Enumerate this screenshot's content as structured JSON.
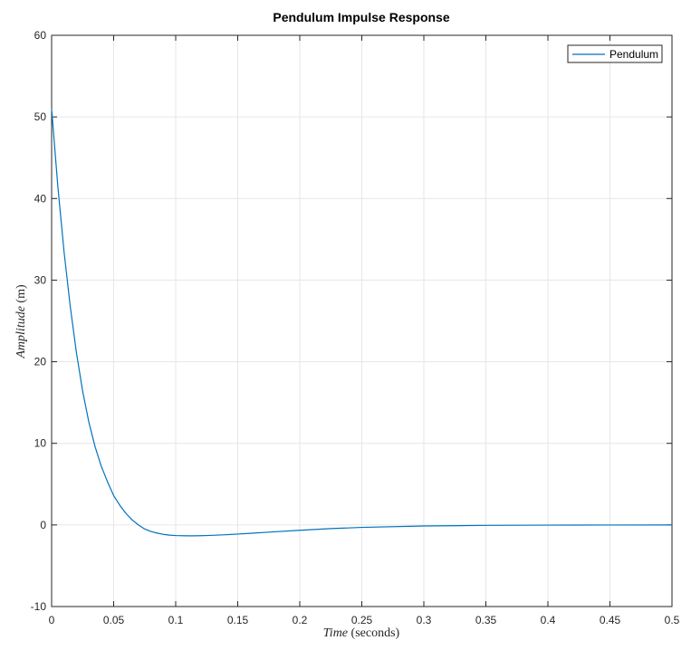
{
  "chart_data": {
    "type": "line",
    "title": "Pendulum Impulse Response",
    "xlabel": {
      "italic": "Time",
      "plain": " (seconds)"
    },
    "ylabel": {
      "italic": "Amplitude",
      "plain": " (m)"
    },
    "xlim": [
      0,
      0.5
    ],
    "ylim": [
      -10,
      60
    ],
    "xticks": [
      0,
      0.05,
      0.1,
      0.15,
      0.2,
      0.25,
      0.3,
      0.35,
      0.4,
      0.45,
      0.5
    ],
    "xtick_labels": [
      "0",
      "0.05",
      "0.1",
      "0.15",
      "0.2",
      "0.25",
      "0.3",
      "0.35",
      "0.4",
      "0.45",
      "0.5"
    ],
    "yticks": [
      -10,
      0,
      10,
      20,
      30,
      40,
      50,
      60
    ],
    "ytick_labels": [
      "-10",
      "0",
      "10",
      "20",
      "30",
      "40",
      "50",
      "60"
    ],
    "grid": true,
    "legend": {
      "placement": "top-right",
      "entries": [
        "Pendulum"
      ]
    },
    "series": [
      {
        "name": "Pendulum",
        "color": "#0072BD",
        "x": [
          0,
          0.005,
          0.01,
          0.015,
          0.02,
          0.025,
          0.03,
          0.035,
          0.04,
          0.045,
          0.05,
          0.055,
          0.06,
          0.065,
          0.07,
          0.075,
          0.08,
          0.085,
          0.09,
          0.095,
          0.1,
          0.105,
          0.11,
          0.115,
          0.12,
          0.125,
          0.13,
          0.14,
          0.15,
          0.16,
          0.175,
          0.2,
          0.225,
          0.25,
          0.3,
          0.35,
          0.4,
          0.45,
          0.5
        ],
        "y": [
          51,
          41.5,
          33.5,
          26.8,
          21.1,
          16.4,
          12.6,
          9.6,
          7.2,
          5.3,
          3.6,
          2.4,
          1.4,
          0.6,
          0.0,
          -0.5,
          -0.8,
          -1.0,
          -1.15,
          -1.25,
          -1.3,
          -1.32,
          -1.33,
          -1.33,
          -1.32,
          -1.3,
          -1.27,
          -1.2,
          -1.12,
          -1.03,
          -0.88,
          -0.65,
          -0.45,
          -0.3,
          -0.13,
          -0.05,
          -0.02,
          -0.01,
          0
        ]
      }
    ]
  },
  "colors": {
    "axis": "#262626",
    "grid": "#e6e6e6",
    "line": "#0072BD"
  }
}
